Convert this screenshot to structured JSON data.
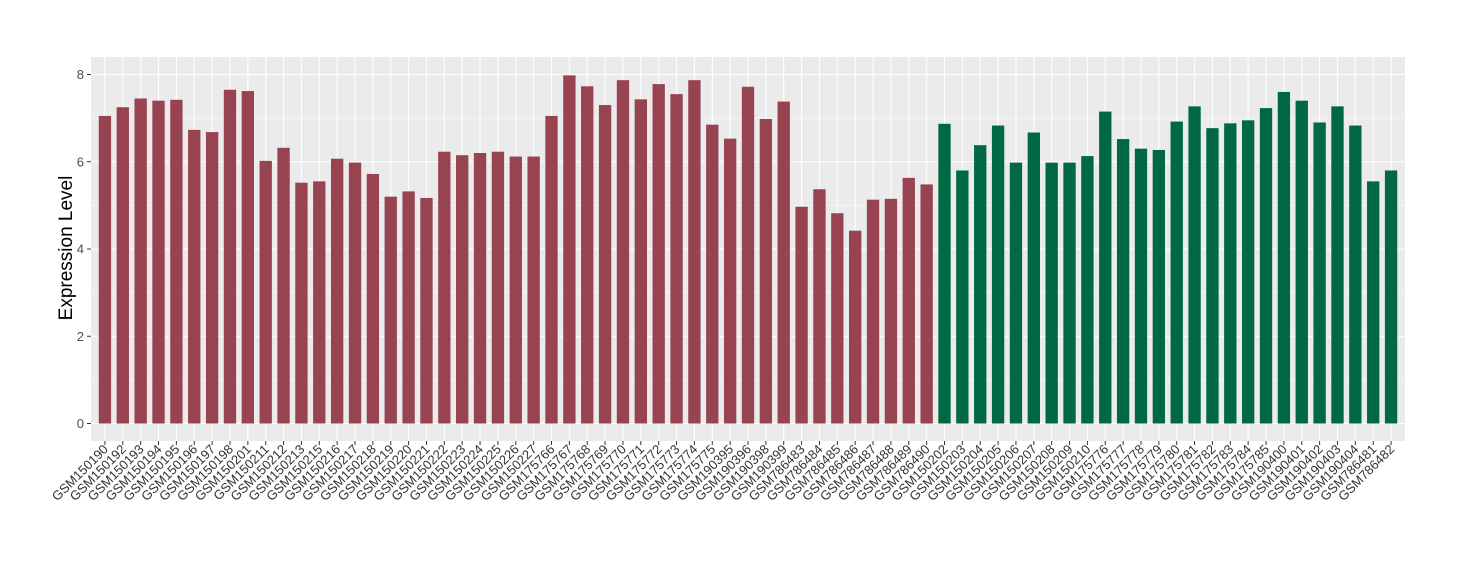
{
  "chart_data": {
    "type": "bar",
    "ylabel": "Expression Level",
    "xlabel": "",
    "ylim": [
      0,
      8.3
    ],
    "yticks": [
      0,
      2,
      4,
      6,
      8
    ],
    "grid": true,
    "colors": {
      "group1": "#974350",
      "group2": "#006843",
      "panel": "#ebebeb",
      "grid": "#ffffff"
    },
    "categories": [
      "GSM150190",
      "GSM150192",
      "GSM150193",
      "GSM150194",
      "GSM150195",
      "GSM150196",
      "GSM150197",
      "GSM150198",
      "GSM150201",
      "GSM150211",
      "GSM150212",
      "GSM150213",
      "GSM150215",
      "GSM150216",
      "GSM150217",
      "GSM150218",
      "GSM150219",
      "GSM150220",
      "GSM150221",
      "GSM150222",
      "GSM150223",
      "GSM150224",
      "GSM150225",
      "GSM150226",
      "GSM150227",
      "GSM175766",
      "GSM175767",
      "GSM175768",
      "GSM175769",
      "GSM175770",
      "GSM175771",
      "GSM175772",
      "GSM175773",
      "GSM175774",
      "GSM175775",
      "GSM190395",
      "GSM190396",
      "GSM190398",
      "GSM190399",
      "GSM786483",
      "GSM786484",
      "GSM786485",
      "GSM786486",
      "GSM786487",
      "GSM786488",
      "GSM786489",
      "GSM786490",
      "GSM150202",
      "GSM150203",
      "GSM150204",
      "GSM150205",
      "GSM150206",
      "GSM150207",
      "GSM150208",
      "GSM150209",
      "GSM150210",
      "GSM175776",
      "GSM175777",
      "GSM175778",
      "GSM175779",
      "GSM175780",
      "GSM175781",
      "GSM175782",
      "GSM175783",
      "GSM175784",
      "GSM175785",
      "GSM190400",
      "GSM190401",
      "GSM190402",
      "GSM190403",
      "GSM190404",
      "GSM786481",
      "GSM786482"
    ],
    "values": [
      7.05,
      7.25,
      7.45,
      7.4,
      7.42,
      6.73,
      6.68,
      7.65,
      7.62,
      6.02,
      6.32,
      5.52,
      5.55,
      6.07,
      5.98,
      5.72,
      5.2,
      5.32,
      5.17,
      6.23,
      6.15,
      6.2,
      6.23,
      6.12,
      6.12,
      7.05,
      7.98,
      7.73,
      7.3,
      7.87,
      7.43,
      7.78,
      7.55,
      7.87,
      6.85,
      6.53,
      7.72,
      6.98,
      7.38,
      4.97,
      5.37,
      4.82,
      4.42,
      5.13,
      5.15,
      5.63,
      5.48,
      6.87,
      5.8,
      6.38,
      6.83,
      5.98,
      6.67,
      5.98,
      5.98,
      6.13,
      7.15,
      6.52,
      6.3,
      6.27,
      6.92,
      7.27,
      6.77,
      6.88,
      6.95,
      7.23,
      7.6,
      7.4,
      6.9,
      7.27,
      6.83,
      5.55,
      5.8
    ],
    "groups": [
      "group1",
      "group1",
      "group1",
      "group1",
      "group1",
      "group1",
      "group1",
      "group1",
      "group1",
      "group1",
      "group1",
      "group1",
      "group1",
      "group1",
      "group1",
      "group1",
      "group1",
      "group1",
      "group1",
      "group1",
      "group1",
      "group1",
      "group1",
      "group1",
      "group1",
      "group1",
      "group1",
      "group1",
      "group1",
      "group1",
      "group1",
      "group1",
      "group1",
      "group1",
      "group1",
      "group1",
      "group1",
      "group1",
      "group1",
      "group1",
      "group1",
      "group1",
      "group1",
      "group1",
      "group1",
      "group1",
      "group1",
      "group2",
      "group2",
      "group2",
      "group2",
      "group2",
      "group2",
      "group2",
      "group2",
      "group2",
      "group2",
      "group2",
      "group2",
      "group2",
      "group2",
      "group2",
      "group2",
      "group2",
      "group2",
      "group2",
      "group2",
      "group2",
      "group2",
      "group2",
      "group2",
      "group2",
      "group2"
    ]
  }
}
